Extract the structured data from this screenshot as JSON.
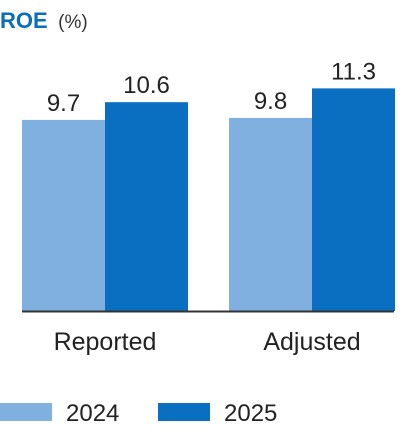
{
  "chart_data": {
    "type": "bar",
    "title": "ROE",
    "title_unit": "(%)",
    "categories": [
      "Reported",
      "Adjusted"
    ],
    "series": [
      {
        "name": "2024",
        "color": "#7fb0e0",
        "values": [
          9.7,
          9.8
        ],
        "labels": [
          "9.7",
          "9.8"
        ]
      },
      {
        "name": "2025",
        "color": "#0a6fc1",
        "values": [
          10.6,
          11.3
        ],
        "labels": [
          "10.6",
          "11.3"
        ]
      }
    ],
    "ylim": [
      0,
      12
    ],
    "grid": false,
    "legend_position": "bottom-left"
  }
}
